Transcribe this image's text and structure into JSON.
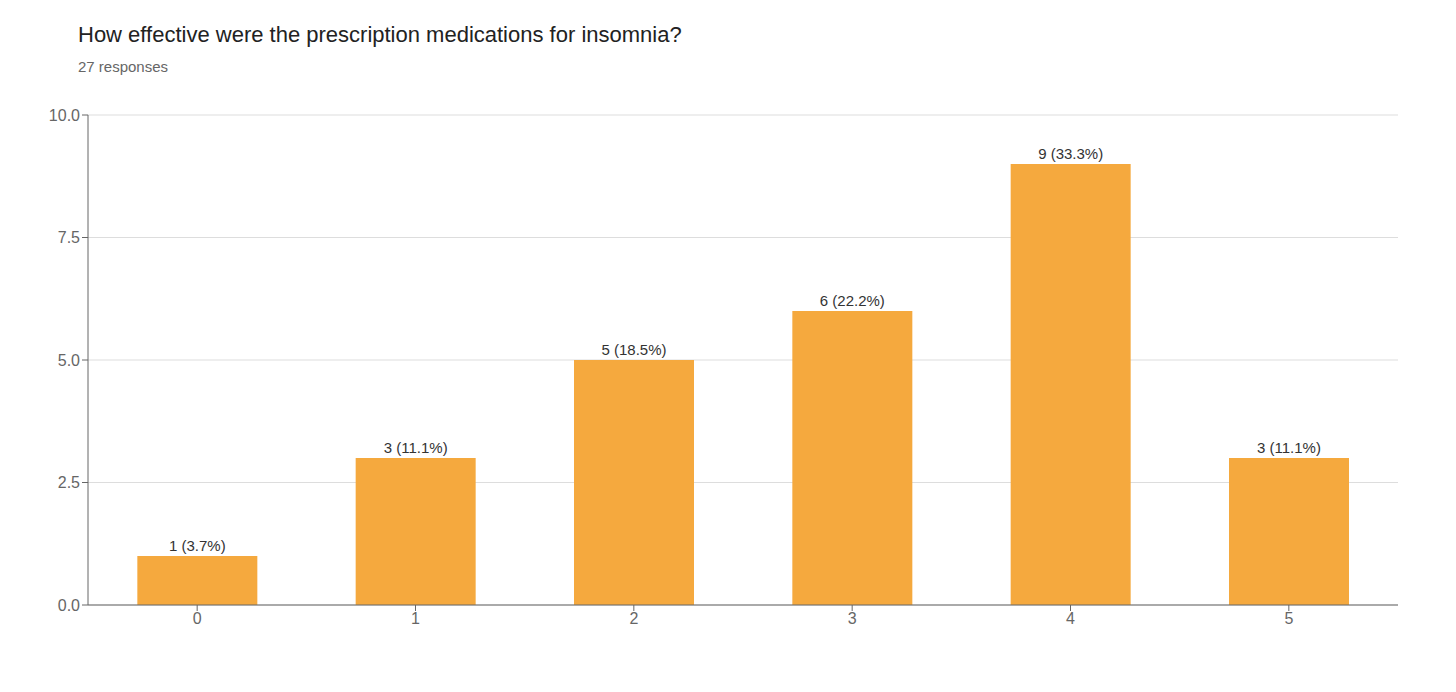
{
  "chart_data": {
    "type": "bar",
    "title": "How effective were the prescription medications for insomnia?",
    "subtitle": "27 responses",
    "categories": [
      0,
      1,
      2,
      3,
      4,
      5
    ],
    "values": [
      1,
      3,
      5,
      6,
      9,
      3
    ],
    "value_labels": [
      "1 (3.7%)",
      "3 (11.1%)",
      "5 (18.5%)",
      "6 (22.2%)",
      "9 (33.3%)",
      "3 (11.1%)"
    ],
    "data_labels": true,
    "color": "#F5A93E",
    "ylim": [
      0,
      10
    ],
    "yticks": [
      {
        "value": 0,
        "label": "0.0"
      },
      2.5,
      {
        "value": 5,
        "label": "5.0"
      },
      7.5,
      {
        "value": 10,
        "label": "10.0"
      }
    ],
    "grid": true
  }
}
